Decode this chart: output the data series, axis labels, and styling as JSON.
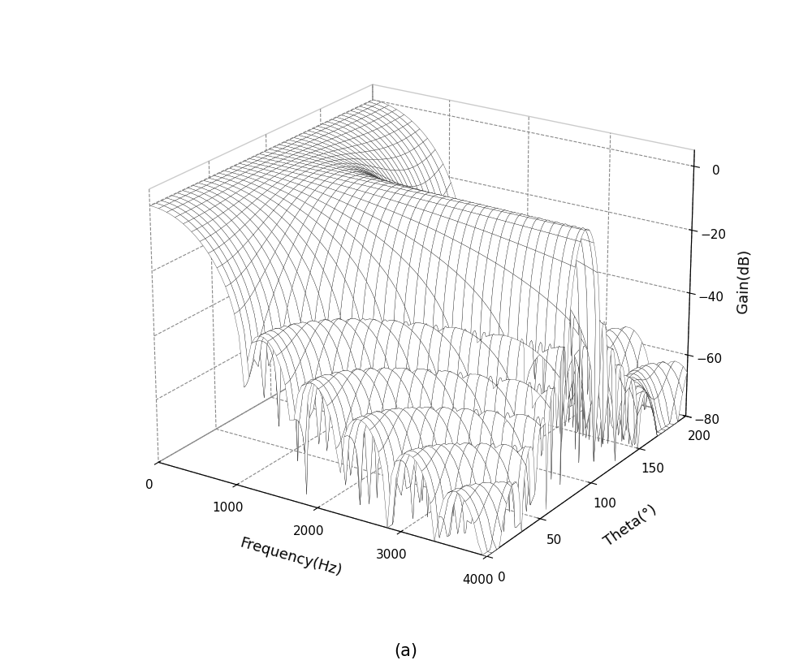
{
  "freq_min": 0,
  "freq_max": 4000,
  "freq_steps": 80,
  "theta_min": 0,
  "theta_max": 200,
  "theta_steps": 181,
  "gain_min": -80,
  "gain_max": 5,
  "xlabel": "Frequency(Hz)",
  "ylabel": "Theta(°)",
  "zlabel": "Gain(dB)",
  "title": "(a)",
  "freq_ticks": [
    0,
    1000,
    2000,
    3000,
    4000
  ],
  "theta_ticks": [
    0,
    50,
    100,
    150,
    200
  ],
  "gain_ticks": [
    -80,
    -60,
    -40,
    -20,
    0
  ],
  "num_elements": 16,
  "d_m": 0.04,
  "c": 340,
  "steering_theta_deg": 90,
  "surface_color": "#ffffff",
  "edge_color": "#222222",
  "background_color": "#ffffff",
  "line_width": 0.25,
  "elev": 22,
  "azim": -57
}
